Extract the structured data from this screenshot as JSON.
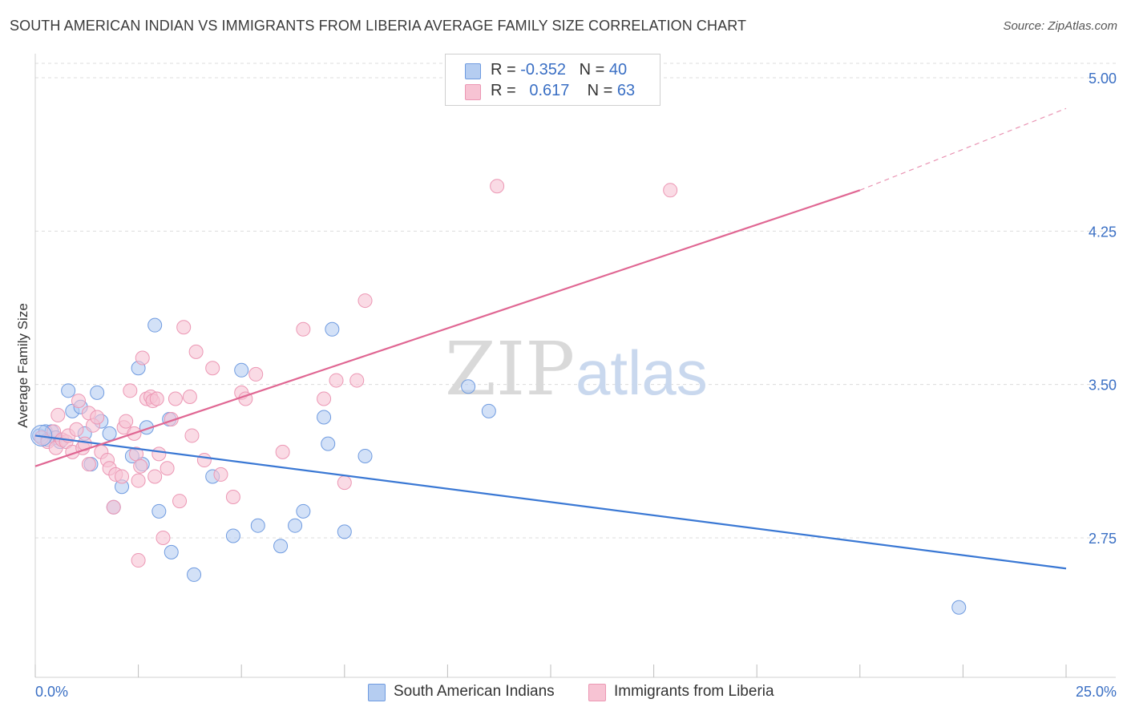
{
  "title": "SOUTH AMERICAN INDIAN VS IMMIGRANTS FROM LIBERIA AVERAGE FAMILY SIZE CORRELATION CHART",
  "source": "Source: ZipAtlas.com",
  "watermark": {
    "zip": "ZIP",
    "atlas": "atlas"
  },
  "colors": {
    "blue": "#3a78d4",
    "blue_fill": "#b5cdf1",
    "blue_edge": "#6f9be0",
    "pink": "#e06793",
    "pink_fill": "#f7c3d3",
    "pink_edge": "#ec97b4",
    "grid": "#dcdcdc",
    "tick_label": "#3a6fc4"
  },
  "legend": {
    "blue": {
      "r_label": "R = ",
      "r_value": "-0.352",
      "n_label": "N = ",
      "n_value": "40"
    },
    "pink": {
      "r_label": "R = ",
      "r_value": "0.617",
      "n_label": "N = ",
      "n_value": "63"
    }
  },
  "bottom_legend": {
    "blue": "South American Indians",
    "pink": "Immigrants from Liberia"
  },
  "chart_data": {
    "type": "scatter",
    "title": "SOUTH AMERICAN INDIAN VS IMMIGRANTS FROM LIBERIA AVERAGE FAMILY SIZE CORRELATION CHART",
    "xlabel": "",
    "ylabel": "Average Family Size",
    "xlim": [
      0,
      25
    ],
    "ylim": [
      2.05,
      5.1
    ],
    "x_tick_labels": [
      "0.0%",
      "25.0%"
    ],
    "y_ticks": [
      2.75,
      3.5,
      4.25,
      5.0
    ],
    "y_tick_labels": [
      "2.75",
      "3.50",
      "4.25",
      "5.00"
    ],
    "series": [
      {
        "name": "South American Indians",
        "color": "blue",
        "trend": {
          "x0": 0,
          "y0": 3.25,
          "x1": 25,
          "y1": 2.6
        },
        "points": [
          [
            0.1,
            3.25
          ],
          [
            0.25,
            3.27
          ],
          [
            0.3,
            3.23
          ],
          [
            0.4,
            3.27
          ],
          [
            0.5,
            3.24
          ],
          [
            0.6,
            3.22
          ],
          [
            0.8,
            3.47
          ],
          [
            0.9,
            3.37
          ],
          [
            1.1,
            3.39
          ],
          [
            1.2,
            3.26
          ],
          [
            1.35,
            3.11
          ],
          [
            1.5,
            3.46
          ],
          [
            1.6,
            3.32
          ],
          [
            1.8,
            3.26
          ],
          [
            1.9,
            2.9
          ],
          [
            2.1,
            3.0
          ],
          [
            2.35,
            3.15
          ],
          [
            2.5,
            3.58
          ],
          [
            2.6,
            3.11
          ],
          [
            2.7,
            3.29
          ],
          [
            2.9,
            3.79
          ],
          [
            3.0,
            2.88
          ],
          [
            3.25,
            3.33
          ],
          [
            3.3,
            2.68
          ],
          [
            3.85,
            2.57
          ],
          [
            4.3,
            3.05
          ],
          [
            5.0,
            3.57
          ],
          [
            4.8,
            2.76
          ],
          [
            5.4,
            2.81
          ],
          [
            5.95,
            2.71
          ],
          [
            6.3,
            2.81
          ],
          [
            6.5,
            2.88
          ],
          [
            7.0,
            3.34
          ],
          [
            7.1,
            3.21
          ],
          [
            7.2,
            3.77
          ],
          [
            7.5,
            2.78
          ],
          [
            8.0,
            3.15
          ],
          [
            10.5,
            3.49
          ],
          [
            11.0,
            3.37
          ],
          [
            22.4,
            2.41
          ]
        ]
      },
      {
        "name": "Immigrants from Liberia",
        "color": "pink",
        "trend": {
          "x0": 0,
          "y0": 3.1,
          "x1": 20,
          "y1": 4.45,
          "dash_x1": 25,
          "dash_y1": 4.85
        },
        "points": [
          [
            0.15,
            3.24
          ],
          [
            0.3,
            3.22
          ],
          [
            0.45,
            3.27
          ],
          [
            0.5,
            3.19
          ],
          [
            0.55,
            3.35
          ],
          [
            0.65,
            3.23
          ],
          [
            0.75,
            3.22
          ],
          [
            0.8,
            3.25
          ],
          [
            0.9,
            3.17
          ],
          [
            1.0,
            3.28
          ],
          [
            1.05,
            3.42
          ],
          [
            1.15,
            3.19
          ],
          [
            1.2,
            3.21
          ],
          [
            1.3,
            3.36
          ],
          [
            1.4,
            3.3
          ],
          [
            1.5,
            3.34
          ],
          [
            1.6,
            3.17
          ],
          [
            1.75,
            3.13
          ],
          [
            1.8,
            3.09
          ],
          [
            1.95,
            3.06
          ],
          [
            1.9,
            2.9
          ],
          [
            2.1,
            3.05
          ],
          [
            2.15,
            3.29
          ],
          [
            2.2,
            3.32
          ],
          [
            2.3,
            3.47
          ],
          [
            2.4,
            3.26
          ],
          [
            2.45,
            3.16
          ],
          [
            2.5,
            3.03
          ],
          [
            2.55,
            3.1
          ],
          [
            2.6,
            3.63
          ],
          [
            2.7,
            3.43
          ],
          [
            2.8,
            3.44
          ],
          [
            2.85,
            3.42
          ],
          [
            2.9,
            3.05
          ],
          [
            2.95,
            3.43
          ],
          [
            3.0,
            3.16
          ],
          [
            3.1,
            2.75
          ],
          [
            3.2,
            3.09
          ],
          [
            3.3,
            3.33
          ],
          [
            3.4,
            3.43
          ],
          [
            3.5,
            2.93
          ],
          [
            3.6,
            3.78
          ],
          [
            3.75,
            3.44
          ],
          [
            3.8,
            3.25
          ],
          [
            3.9,
            3.66
          ],
          [
            4.1,
            3.13
          ],
          [
            4.3,
            3.58
          ],
          [
            4.5,
            3.06
          ],
          [
            4.8,
            2.95
          ],
          [
            5.0,
            3.46
          ],
          [
            5.1,
            3.43
          ],
          [
            5.35,
            3.55
          ],
          [
            6.0,
            3.17
          ],
          [
            6.5,
            3.77
          ],
          [
            7.0,
            3.43
          ],
          [
            7.3,
            3.52
          ],
          [
            7.5,
            3.02
          ],
          [
            7.8,
            3.52
          ],
          [
            8.0,
            3.91
          ],
          [
            11.2,
            4.47
          ],
          [
            15.4,
            4.45
          ],
          [
            2.5,
            2.64
          ],
          [
            1.3,
            3.11
          ]
        ]
      }
    ]
  }
}
